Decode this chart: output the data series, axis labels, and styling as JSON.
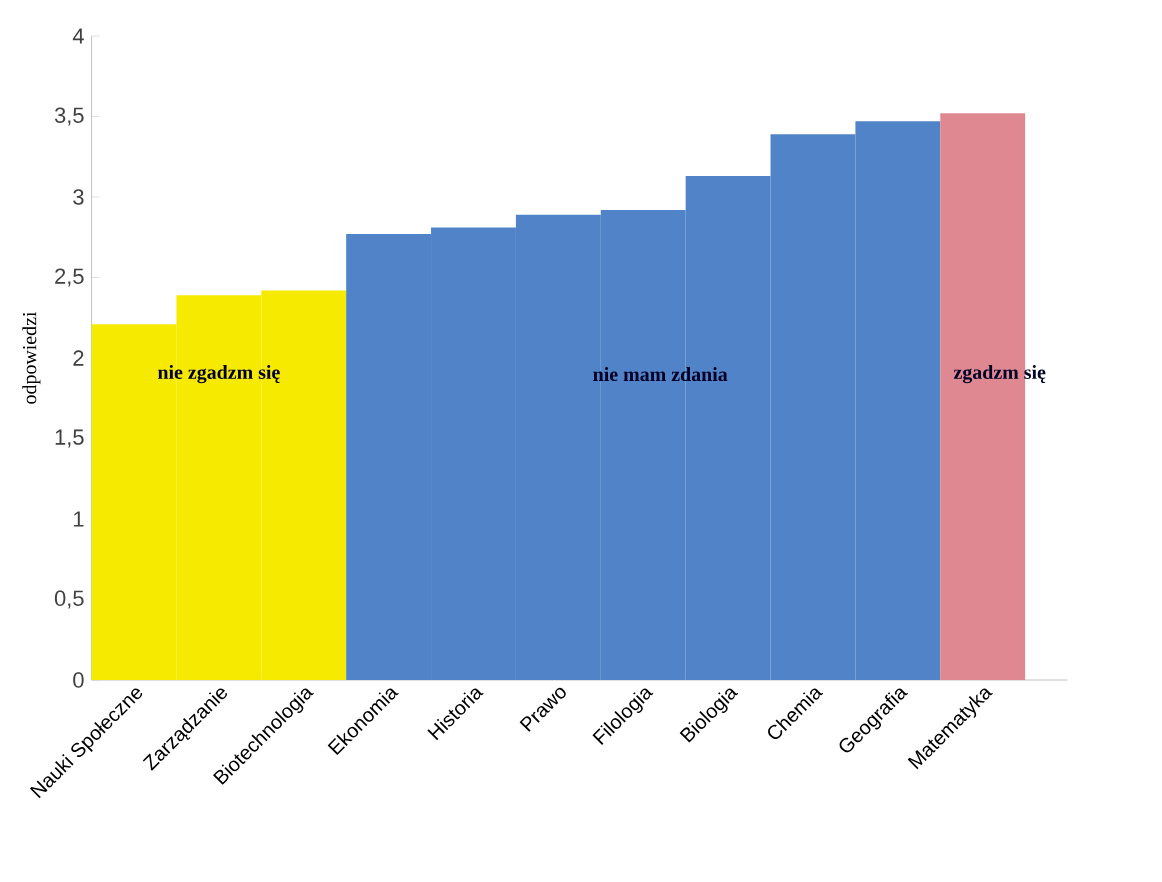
{
  "chart_data": {
    "type": "bar",
    "ylabel": "odpowiedzi",
    "categories": [
      "Nauki Społeczne",
      "Zarządzanie",
      "Biotechnologia",
      "Ekonomia",
      "Historia",
      "Prawo",
      "Filologia",
      "Biologia",
      "Chemia",
      "Geografia",
      "Matematyka"
    ],
    "values": [
      2.21,
      2.39,
      2.42,
      2.77,
      2.81,
      2.89,
      2.92,
      3.13,
      3.39,
      3.47,
      3.52
    ],
    "colors": [
      "#f5ea00",
      "#f5ea00",
      "#f5ea00",
      "#5083c8",
      "#5083c8",
      "#5083c8",
      "#5083c8",
      "#5083c8",
      "#5083c8",
      "#5083c8",
      "#e08891"
    ],
    "ylim": [
      0,
      4
    ],
    "yticks": [
      0,
      {
        "value": 0.5,
        "label": "0,5"
      },
      1,
      {
        "value": 1.5,
        "label": "1,5"
      },
      2,
      {
        "value": 2.5,
        "label": "2,5"
      },
      3,
      {
        "value": 3.5,
        "label": "3,5"
      },
      4
    ],
    "annotations": [
      "nie zgadzm się",
      "nie mam zdania",
      "zgadzm się"
    ],
    "grid": false
  }
}
